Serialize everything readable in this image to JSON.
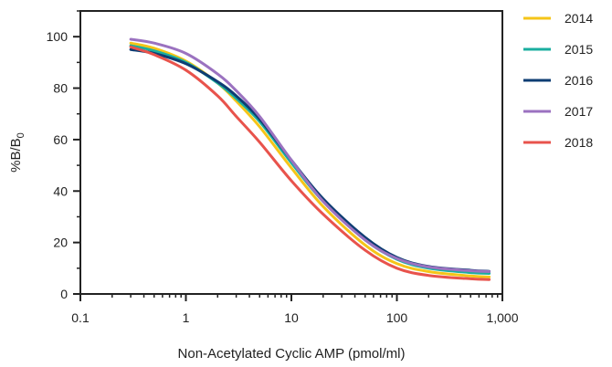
{
  "chart_data": {
    "type": "line",
    "title": "",
    "xlabel": "Non-Acetylated Cyclic AMP (pmol/ml)",
    "ylabel": {
      "main": "%B/B",
      "sub": "0"
    },
    "x_scale": "log",
    "xlim": [
      0.1,
      1000
    ],
    "ylim": [
      0,
      110
    ],
    "x_ticks": [
      {
        "value": 0.1,
        "label": "0.1"
      },
      {
        "value": 1,
        "label": "1"
      },
      {
        "value": 10,
        "label": "10"
      },
      {
        "value": 100,
        "label": "100"
      },
      {
        "value": 1000,
        "label": "1,000"
      }
    ],
    "y_ticks": [
      {
        "value": 0,
        "label": "0"
      },
      {
        "value": 20,
        "label": "20"
      },
      {
        "value": 40,
        "label": "40"
      },
      {
        "value": 60,
        "label": "60"
      },
      {
        "value": 80,
        "label": "80"
      },
      {
        "value": 100,
        "label": "100"
      }
    ],
    "grid": false,
    "legend_position": "top-right-outside",
    "x": [
      0.3,
      0.5,
      1,
      2,
      3,
      5,
      10,
      20,
      50,
      100,
      200,
      500,
      750
    ],
    "series": [
      {
        "name": "2014",
        "color": "#F5C518",
        "values": [
          97.5,
          95.5,
          90.5,
          82,
          75,
          65,
          49,
          34,
          19,
          11.8,
          8.7,
          7.0,
          6.6
        ]
      },
      {
        "name": "2015",
        "color": "#1AAE9F",
        "values": [
          96.5,
          94.5,
          90,
          82,
          76,
          67,
          51,
          36,
          21,
          13.5,
          10.0,
          8.3,
          8.0
        ]
      },
      {
        "name": "2016",
        "color": "#0E3D73",
        "values": [
          95,
          93.5,
          89.5,
          82.5,
          77,
          68,
          52,
          37,
          22,
          14.2,
          10.7,
          9.2,
          8.8
        ]
      },
      {
        "name": "2017",
        "color": "#9B72C0",
        "values": [
          99,
          97.5,
          93.5,
          85.5,
          79,
          69,
          52,
          36,
          21,
          13.8,
          10.5,
          9.0,
          8.7
        ]
      },
      {
        "name": "2018",
        "color": "#E8534C",
        "values": [
          96,
          93,
          87,
          77,
          69,
          59,
          44,
          31,
          17,
          10.0,
          7.2,
          5.9,
          5.6
        ]
      }
    ]
  }
}
